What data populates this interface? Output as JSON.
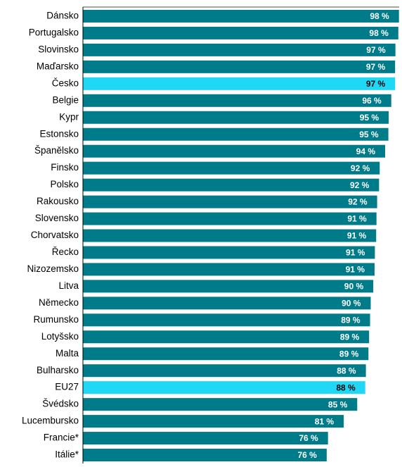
{
  "chart_data": {
    "type": "hbar",
    "categories": [
      "Dánsko",
      "Portugalsko",
      "Slovinsko",
      "Maďarsko",
      "Česko",
      "Belgie",
      "Kypr",
      "Estonsko",
      "Španělsko",
      "Finsko",
      "Polsko",
      "Rakousko",
      "Slovensko",
      "Chorvatsko",
      "Řecko",
      "Nizozemsko",
      "Litva",
      "Německo",
      "Rumunsko",
      "Lotyšsko",
      "Malta",
      "Bulharsko",
      "EU27",
      "Švédsko",
      "Lucembursko",
      "Francie*",
      "Itálie*"
    ],
    "values": [
      98.4,
      98.2,
      97.3,
      97.2,
      97.2,
      96,
      95.2,
      95.1,
      94.1,
      92.4,
      92.2,
      91.6,
      91.4,
      91.3,
      90.9,
      90.8,
      90.4,
      89.6,
      89.4,
      89.1,
      88.9,
      88.1,
      87.9,
      85.4,
      81.2,
      76.3,
      75.9
    ],
    "value_labels": [
      "98 %",
      "98 %",
      "97 %",
      "97 %",
      "97 %",
      "96 %",
      "95 %",
      "95 %",
      "94 %",
      "92 %",
      "92 %",
      "92 %",
      "91 %",
      "91 %",
      "91 %",
      "91 %",
      "90 %",
      "90 %",
      "89 %",
      "89 %",
      "89 %",
      "88 %",
      "88 %",
      "85 %",
      "81 %",
      "76 %",
      "76 %"
    ],
    "colors": [
      "#007b8a",
      "#007b8a",
      "#007b8a",
      "#007b8a",
      "#1ed8f5",
      "#007b8a",
      "#007b8a",
      "#007b8a",
      "#007b8a",
      "#007b8a",
      "#007b8a",
      "#007b8a",
      "#007b8a",
      "#007b8a",
      "#007b8a",
      "#007b8a",
      "#007b8a",
      "#007b8a",
      "#007b8a",
      "#007b8a",
      "#007b8a",
      "#007b8a",
      "#1ed8f5",
      "#007b8a",
      "#007b8a",
      "#007b8a",
      "#007b8a"
    ],
    "label_colors": [
      "#fff",
      "#fff",
      "#fff",
      "#fff",
      "#000",
      "#fff",
      "#fff",
      "#fff",
      "#fff",
      "#fff",
      "#fff",
      "#fff",
      "#fff",
      "#fff",
      "#fff",
      "#fff",
      "#fff",
      "#fff",
      "#fff",
      "#fff",
      "#fff",
      "#fff",
      "#000",
      "#fff",
      "#fff",
      "#fff",
      "#fff"
    ],
    "xlim": [
      0,
      100
    ]
  }
}
